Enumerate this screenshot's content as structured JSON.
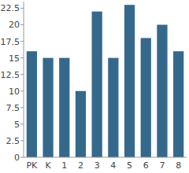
{
  "chart_data": {
    "type": "bar",
    "categories": [
      "PK",
      "K",
      "1",
      "2",
      "3",
      "4",
      "5",
      "6",
      "7",
      "8"
    ],
    "values": [
      16,
      15,
      15,
      10,
      22,
      15,
      23,
      18,
      20,
      16
    ],
    "color": "#35698c",
    "ylim": [
      0,
      23.5
    ],
    "yticks": [
      0,
      2.5,
      5,
      7.5,
      10,
      12.5,
      15,
      17.5,
      20,
      22.5
    ],
    "grid": false
  }
}
